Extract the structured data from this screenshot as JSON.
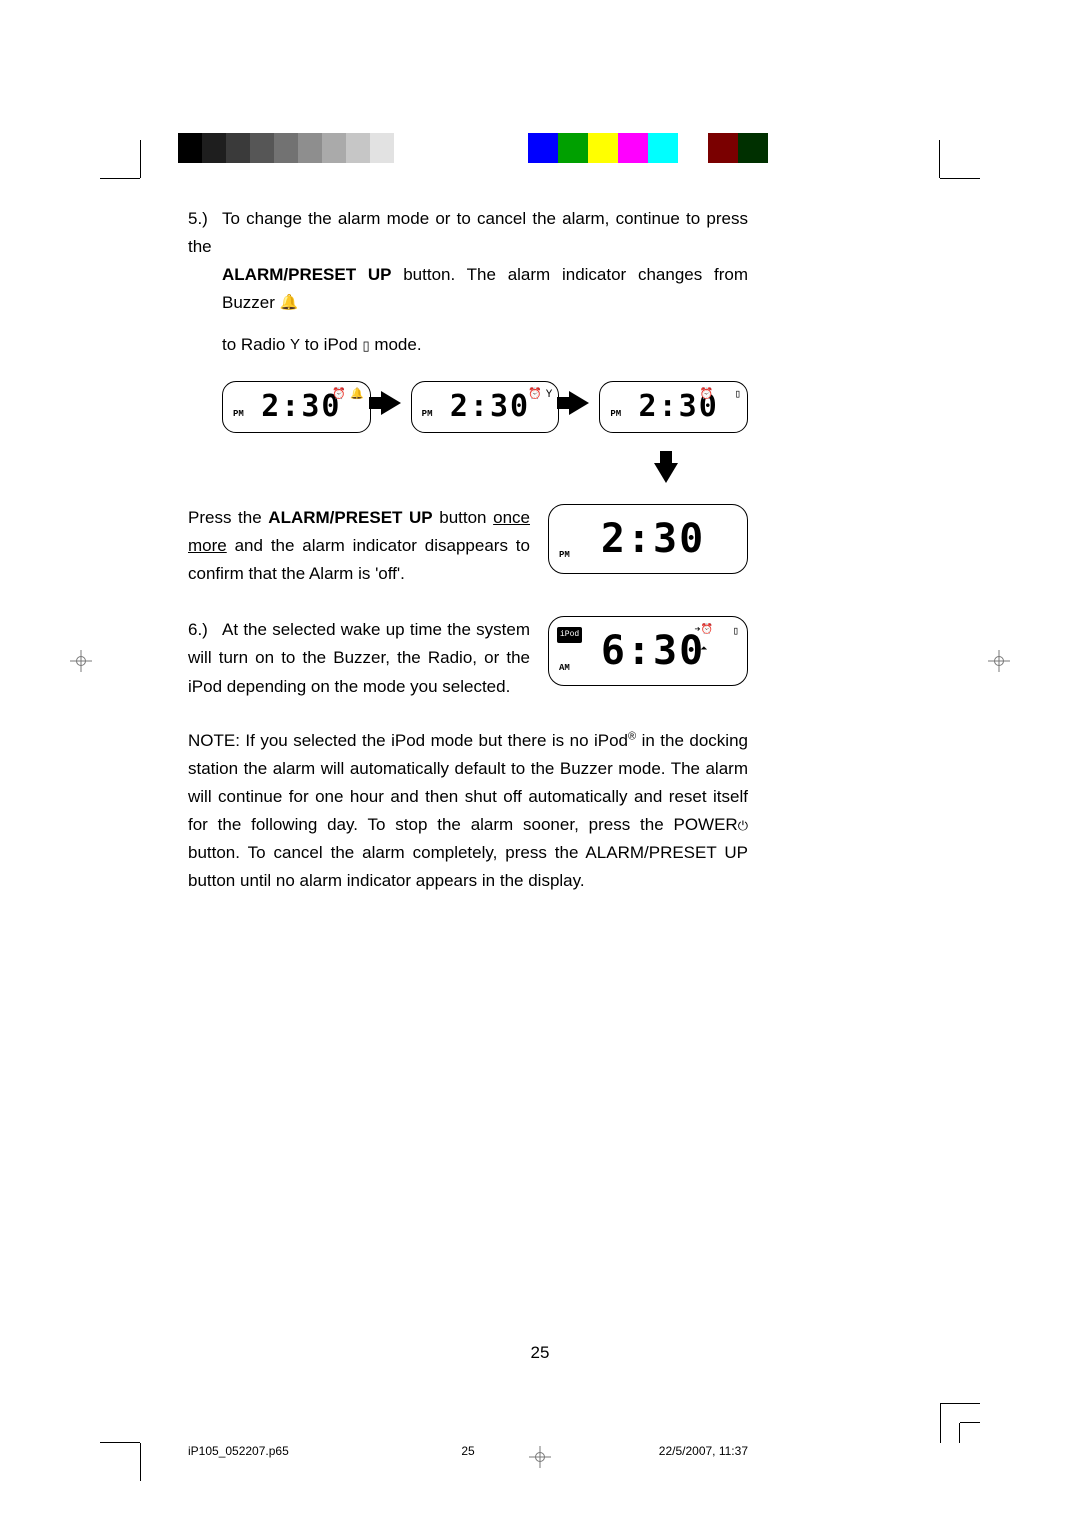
{
  "gray_strip_colors": [
    "#000000",
    "#1e1e1e",
    "#3a3a3a",
    "#565656",
    "#727272",
    "#8e8e8e",
    "#aaaaaa",
    "#c6c6c6",
    "#e2e2e2",
    "#ffffff"
  ],
  "color_strip_colors": [
    "#0000ff",
    "#00a000",
    "#ffff00",
    "#ff00ff",
    "#00ffff",
    "#ffffff",
    "#7a0000",
    "#003000"
  ],
  "step5": {
    "num": "5.)",
    "line1a": "To change the alarm mode or to cancel the alarm, continue to press the",
    "line2a": "ALARM/PRESET UP",
    "line2b": " button. The alarm indicator changes from Buzzer ",
    "line3a": "to Radio ",
    "line3b": " to iPod ",
    "line3c": " mode."
  },
  "icons": {
    "buzzer": "🔔",
    "antenna": "Y",
    "ipod": "▯",
    "clock": "⏰",
    "power": "⏻",
    "signal": "📶"
  },
  "lcd_row": {
    "pm": "PM",
    "time": "2:30"
  },
  "press": {
    "t1": "Press the ",
    "bold": "ALARM/PRESET UP",
    "t2": " button ",
    "u1": "once more",
    "t3": " and the alarm indicator disappears to confirm that the Alarm is 'off'."
  },
  "lcd_off": {
    "pm": "PM",
    "time": "2:30"
  },
  "step6": {
    "num": "6.)",
    "text": "At the selected wake up time the system will turn on to the Buzzer, the Radio, or the iPod depending on the mode you selected.",
    "lcd": {
      "am": "AM",
      "ipod": "iPod",
      "time": "6:30"
    }
  },
  "note": {
    "t1": "NOTE: If you selected the iPod mode but there is no iPod",
    "sup": "®",
    "t2": " in the docking station the alarm will automatically default to the Buzzer mode. The alarm will continue for one hour and then shut off automatically and reset itself for the following day. To stop the alarm sooner, press the POWER",
    "t3": " button. To cancel the alarm completely, press the ALARM/PRESET UP  button until no alarm indicator appears in the display."
  },
  "page_number": "25",
  "footer": {
    "left": "iP105_052207.p65",
    "mid": "25",
    "right": "22/5/2007, 11:37"
  }
}
